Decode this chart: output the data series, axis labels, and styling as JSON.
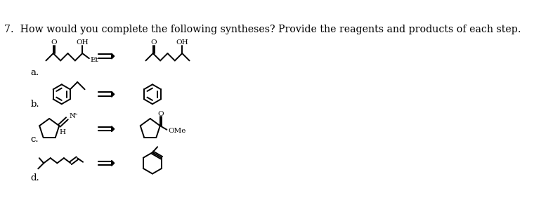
{
  "title": "7.  How would you complete the following syntheses? Provide the reagents and products of each step.",
  "title_fontsize": 10.2,
  "bg_color": "#ffffff",
  "line_color": "#000000",
  "labels": [
    "a.",
    "b.",
    "c.",
    "d."
  ],
  "lw": 1.4
}
